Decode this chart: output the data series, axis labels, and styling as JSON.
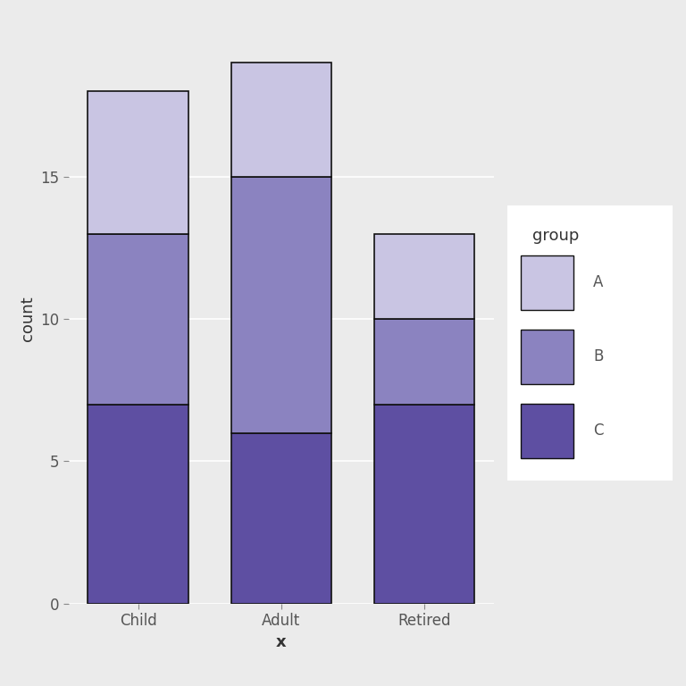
{
  "categories": [
    "Child",
    "Adult",
    "Retired"
  ],
  "C_values": [
    7,
    6,
    7
  ],
  "B_values": [
    6,
    9,
    3
  ],
  "A_values": [
    5,
    4,
    3
  ],
  "color_C": "#5E4FA2",
  "color_B": "#8B83C0",
  "color_A": "#C9C5E3",
  "bar_edgecolor": "#111111",
  "bar_width": 0.7,
  "panel_background": "#EBEBEB",
  "fig_background": "#EBEBEB",
  "legend_background": "#FFFFFF",
  "grid_color": "#FFFFFF",
  "xlabel": "x",
  "ylabel": "count",
  "legend_title": "group",
  "yticks": [
    0,
    5,
    10,
    15
  ],
  "ylim": [
    0,
    20
  ],
  "axis_label_fontsize": 13,
  "tick_fontsize": 12,
  "legend_fontsize": 12,
  "legend_title_fontsize": 13
}
